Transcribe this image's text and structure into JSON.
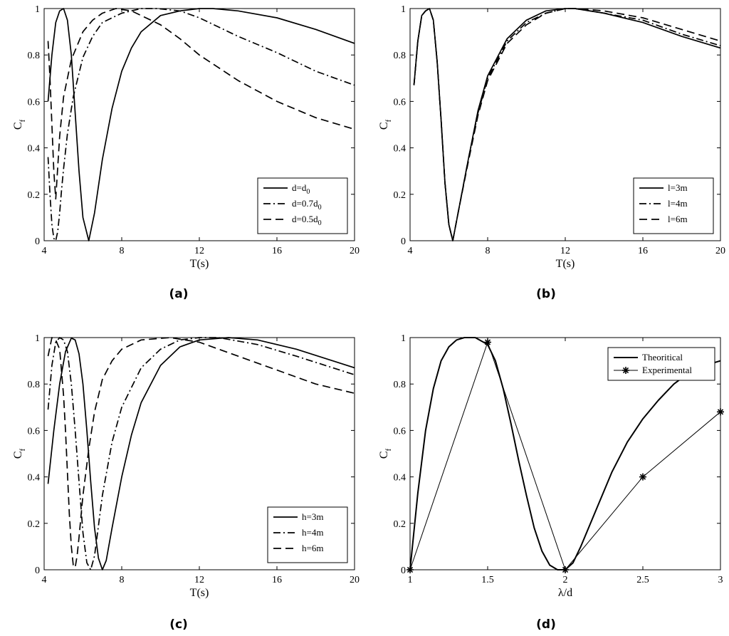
{
  "chart_data": [
    {
      "type": "line",
      "panel_label": "(a)",
      "xlabel": "T(s)",
      "ylabel": "C",
      "ylabel_sub": "f",
      "xlim": [
        4,
        20
      ],
      "ylim": [
        0,
        1
      ],
      "xticks": [
        4,
        8,
        12,
        16,
        20
      ],
      "yticks": [
        0,
        0.2,
        0.4,
        0.6,
        0.8,
        1
      ],
      "legend_position": "bottom-right",
      "series": [
        {
          "name": "d=d",
          "name_sub": "0",
          "dash": "solid",
          "x": [
            4.2,
            4.4,
            4.6,
            4.8,
            5.0,
            5.2,
            5.4,
            5.6,
            5.8,
            6.0,
            6.3,
            6.6,
            7.0,
            7.5,
            8.0,
            8.5,
            9.0,
            10.0,
            11.0,
            12.0,
            12.7,
            14.0,
            16.0,
            18.0,
            20.0
          ],
          "y": [
            0.6,
            0.8,
            0.94,
            0.99,
            1.0,
            0.95,
            0.8,
            0.55,
            0.3,
            0.1,
            0.0,
            0.12,
            0.35,
            0.57,
            0.73,
            0.83,
            0.9,
            0.97,
            0.99,
            1.0,
            1.0,
            0.99,
            0.96,
            0.91,
            0.85
          ]
        },
        {
          "name": "d=0.7d",
          "name_sub": "0",
          "dash": "dashdot",
          "x": [
            4.2,
            4.3,
            4.4,
            4.5,
            4.6,
            4.7,
            4.8,
            4.9,
            5.0,
            5.2,
            5.5,
            6.0,
            6.5,
            7.0,
            8.0,
            9.0,
            9.8,
            11.0,
            12.0,
            14.0,
            16.0,
            18.0,
            20.0
          ],
          "y": [
            0.36,
            0.2,
            0.07,
            0.01,
            0.0,
            0.04,
            0.12,
            0.22,
            0.31,
            0.46,
            0.62,
            0.79,
            0.88,
            0.94,
            0.98,
            1.0,
            1.0,
            0.99,
            0.96,
            0.88,
            0.81,
            0.73,
            0.67
          ]
        },
        {
          "name": "d=0.5d",
          "name_sub": "0",
          "dash": "dashed",
          "x": [
            4.2,
            4.3,
            4.4,
            4.5,
            4.6,
            4.8,
            5.0,
            5.4,
            6.0,
            6.5,
            7.0,
            7.7,
            8.5,
            9.0,
            10.0,
            11.0,
            12.0,
            14.0,
            16.0,
            18.0,
            20.0
          ],
          "y": [
            0.86,
            0.7,
            0.5,
            0.3,
            0.18,
            0.45,
            0.62,
            0.78,
            0.9,
            0.95,
            0.98,
            1.0,
            0.99,
            0.97,
            0.93,
            0.87,
            0.8,
            0.69,
            0.6,
            0.53,
            0.48
          ]
        }
      ]
    },
    {
      "type": "line",
      "panel_label": "(b)",
      "xlabel": "T(s)",
      "ylabel": "C",
      "ylabel_sub": "f",
      "xlim": [
        4,
        20
      ],
      "ylim": [
        0,
        1
      ],
      "xticks": [
        4,
        8,
        12,
        16,
        20
      ],
      "yticks": [
        0,
        0.2,
        0.4,
        0.6,
        0.8,
        1
      ],
      "legend_position": "bottom-right",
      "series": [
        {
          "name": "l=3m",
          "dash": "solid",
          "x": [
            4.2,
            4.4,
            4.6,
            4.8,
            5.0,
            5.2,
            5.4,
            5.6,
            5.8,
            6.0,
            6.2,
            6.5,
            7.0,
            7.5,
            8.0,
            9.0,
            10.0,
            11.0,
            12.0,
            12.5,
            14.0,
            16.0,
            18.0,
            20.0
          ],
          "y": [
            0.67,
            0.86,
            0.97,
            0.99,
            1.0,
            0.95,
            0.77,
            0.52,
            0.25,
            0.07,
            0.0,
            0.13,
            0.35,
            0.56,
            0.71,
            0.87,
            0.95,
            0.99,
            1.0,
            1.0,
            0.98,
            0.94,
            0.88,
            0.83
          ]
        },
        {
          "name": "l=4m",
          "dash": "dashdot",
          "x": [
            4.2,
            4.4,
            4.6,
            4.8,
            5.0,
            5.2,
            5.4,
            5.6,
            5.8,
            6.0,
            6.2,
            6.5,
            7.0,
            7.5,
            8.0,
            9.0,
            10.0,
            11.0,
            12.0,
            12.5,
            14.0,
            16.0,
            18.0,
            20.0
          ],
          "y": [
            0.67,
            0.86,
            0.97,
            0.99,
            1.0,
            0.95,
            0.77,
            0.52,
            0.25,
            0.07,
            0.0,
            0.13,
            0.35,
            0.55,
            0.7,
            0.86,
            0.94,
            0.98,
            1.0,
            1.0,
            0.98,
            0.95,
            0.89,
            0.84
          ]
        },
        {
          "name": "l=6m",
          "dash": "dashed",
          "x": [
            4.2,
            4.4,
            4.6,
            4.8,
            5.0,
            5.2,
            5.4,
            5.6,
            5.8,
            6.0,
            6.2,
            6.5,
            7.0,
            7.5,
            8.0,
            9.0,
            10.0,
            11.0,
            12.0,
            12.5,
            14.0,
            16.0,
            18.0,
            20.0
          ],
          "y": [
            0.67,
            0.86,
            0.97,
            0.99,
            1.0,
            0.95,
            0.77,
            0.52,
            0.25,
            0.07,
            0.0,
            0.13,
            0.34,
            0.54,
            0.69,
            0.85,
            0.93,
            0.98,
            1.0,
            1.0,
            0.99,
            0.96,
            0.91,
            0.86
          ]
        }
      ]
    },
    {
      "type": "line",
      "panel_label": "(c)",
      "xlabel": "T(s)",
      "ylabel": "C",
      "ylabel_sub": "f",
      "xlim": [
        4,
        20
      ],
      "ylim": [
        0,
        1
      ],
      "xticks": [
        4,
        8,
        12,
        16,
        20
      ],
      "yticks": [
        0,
        0.2,
        0.4,
        0.6,
        0.8,
        1
      ],
      "legend_position": "bottom-right",
      "series": [
        {
          "name": "h=3m",
          "dash": "solid",
          "x": [
            4.2,
            4.5,
            4.8,
            5.1,
            5.4,
            5.6,
            5.8,
            6.0,
            6.2,
            6.4,
            6.6,
            6.8,
            7.0,
            7.2,
            7.5,
            8.0,
            8.5,
            9.0,
            10.0,
            11.0,
            12.0,
            13.5,
            15.0,
            17.0,
            20.0
          ],
          "y": [
            0.37,
            0.6,
            0.8,
            0.94,
            0.998,
            0.99,
            0.93,
            0.8,
            0.6,
            0.38,
            0.18,
            0.05,
            0.0,
            0.04,
            0.18,
            0.4,
            0.58,
            0.72,
            0.88,
            0.96,
            0.99,
            1.0,
            0.99,
            0.95,
            0.87
          ]
        },
        {
          "name": "h=4m",
          "dash": "dashdot",
          "x": [
            4.2,
            4.4,
            4.6,
            4.8,
            5.0,
            5.2,
            5.4,
            5.6,
            5.8,
            6.0,
            6.2,
            6.4,
            6.6,
            6.8,
            7.0,
            7.5,
            8.0,
            9.0,
            10.0,
            11.0,
            12.0,
            13.0,
            15.0,
            17.0,
            20.0
          ],
          "y": [
            0.69,
            0.88,
            0.98,
            1.0,
            0.99,
            0.94,
            0.8,
            0.6,
            0.38,
            0.16,
            0.03,
            0.0,
            0.06,
            0.19,
            0.32,
            0.55,
            0.7,
            0.87,
            0.95,
            0.99,
            1.0,
            1.0,
            0.97,
            0.92,
            0.84
          ]
        },
        {
          "name": "h=6m",
          "dash": "dashed",
          "x": [
            4.2,
            4.4,
            4.6,
            4.8,
            5.0,
            5.1,
            5.2,
            5.3,
            5.4,
            5.5,
            5.6,
            5.7,
            5.8,
            6.0,
            6.3,
            6.6,
            7.0,
            7.5,
            8.0,
            9.0,
            10.5,
            12.0,
            14.0,
            16.0,
            18.0,
            20.0
          ],
          "y": [
            0.92,
            1.0,
            0.99,
            0.95,
            0.75,
            0.6,
            0.42,
            0.24,
            0.1,
            0.02,
            0.01,
            0.06,
            0.14,
            0.32,
            0.52,
            0.68,
            0.82,
            0.9,
            0.95,
            0.99,
            1.0,
            0.98,
            0.92,
            0.86,
            0.8,
            0.76
          ]
        }
      ]
    },
    {
      "type": "line",
      "panel_label": "(d)",
      "xlabel": "λ/d",
      "ylabel": "C",
      "ylabel_sub": "f",
      "xlim": [
        1,
        3
      ],
      "ylim": [
        0,
        1
      ],
      "xticks": [
        1,
        1.5,
        2,
        2.5,
        3
      ],
      "yticks": [
        0,
        0.2,
        0.4,
        0.6,
        0.8,
        1
      ],
      "legend_position": "top-right",
      "series": [
        {
          "name": "Theoritical",
          "dash": "solid",
          "width": "thick",
          "x": [
            1.0,
            1.05,
            1.1,
            1.15,
            1.2,
            1.25,
            1.3,
            1.35,
            1.42,
            1.5,
            1.55,
            1.6,
            1.65,
            1.7,
            1.75,
            1.8,
            1.85,
            1.9,
            1.95,
            2.0,
            2.05,
            2.1,
            2.2,
            2.3,
            2.4,
            2.5,
            2.6,
            2.7,
            2.8,
            2.9,
            3.0
          ],
          "y": [
            0.0,
            0.33,
            0.6,
            0.78,
            0.9,
            0.96,
            0.99,
            1.0,
            1.0,
            0.97,
            0.9,
            0.78,
            0.63,
            0.47,
            0.32,
            0.18,
            0.08,
            0.02,
            0.0,
            0.0,
            0.03,
            0.1,
            0.26,
            0.42,
            0.55,
            0.65,
            0.73,
            0.8,
            0.85,
            0.88,
            0.9
          ]
        },
        {
          "name": "Experimental",
          "dash": "solid",
          "width": "thin",
          "marker": "asterisk",
          "x": [
            1.0,
            1.5,
            2.0,
            2.5,
            3.0
          ],
          "y": [
            0.0,
            0.98,
            0.0,
            0.4,
            0.68
          ]
        }
      ]
    }
  ]
}
